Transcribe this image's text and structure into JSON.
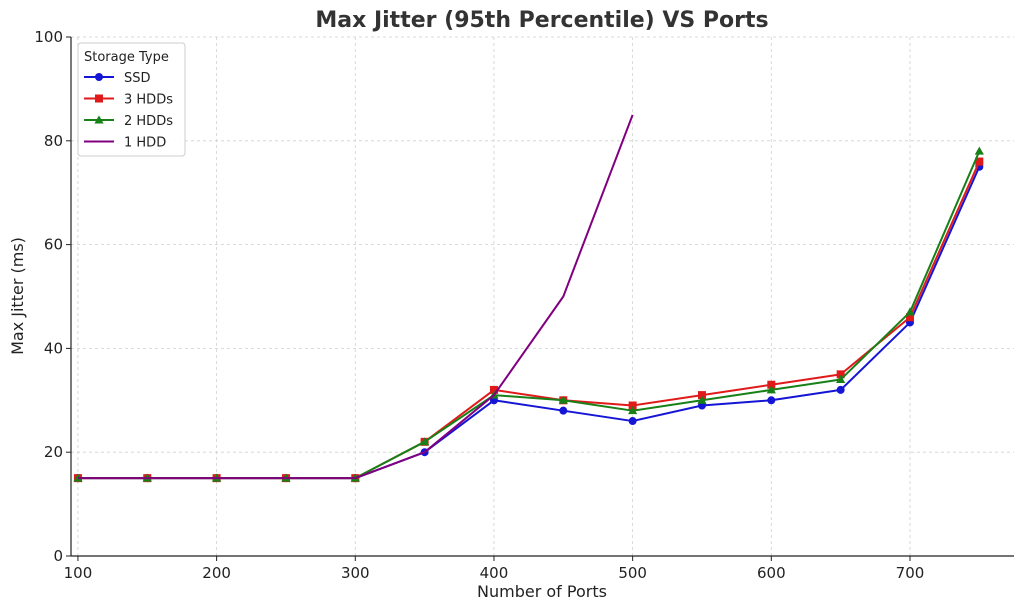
{
  "chart_data": {
    "type": "line",
    "title": "Max Jitter (95th Percentile) VS Ports",
    "xlabel": "Number of Ports",
    "ylabel": "Max Jitter (ms)",
    "xlim": [
      95,
      775
    ],
    "ylim": [
      0,
      100
    ],
    "xticks": [
      100,
      200,
      300,
      400,
      500,
      600,
      700
    ],
    "yticks": [
      0,
      20,
      40,
      60,
      80,
      100
    ],
    "grid": true,
    "legend": {
      "title": "Storage Type",
      "placement": "top-left"
    },
    "series": [
      {
        "name": "SSD",
        "color": "#1515d6",
        "marker": "circle",
        "x": [
          100,
          150,
          200,
          250,
          300,
          350,
          400,
          450,
          500,
          550,
          600,
          650,
          700,
          750
        ],
        "y": [
          15,
          15,
          15,
          15,
          15,
          20,
          30,
          28,
          26,
          29,
          30,
          32,
          45,
          75
        ]
      },
      {
        "name": "3 HDDs",
        "color": "#e01a1a",
        "marker": "square",
        "x": [
          100,
          150,
          200,
          250,
          300,
          350,
          400,
          450,
          500,
          550,
          600,
          650,
          700,
          750
        ],
        "y": [
          15,
          15,
          15,
          15,
          15,
          22,
          32,
          30,
          29,
          31,
          33,
          35,
          46,
          76
        ]
      },
      {
        "name": "2 HDDs",
        "color": "#178017",
        "marker": "triangle",
        "x": [
          100,
          150,
          200,
          250,
          300,
          350,
          400,
          450,
          500,
          550,
          600,
          650,
          700,
          750
        ],
        "y": [
          15,
          15,
          15,
          15,
          15,
          22,
          31,
          30,
          28,
          30,
          32,
          34,
          47,
          78
        ]
      },
      {
        "name": "1 HDD",
        "color": "#800080",
        "marker": "none",
        "x": [
          100,
          150,
          200,
          250,
          300,
          350,
          400,
          450,
          500
        ],
        "y": [
          15,
          15,
          15,
          15,
          15,
          20,
          31,
          50,
          85
        ]
      }
    ]
  }
}
